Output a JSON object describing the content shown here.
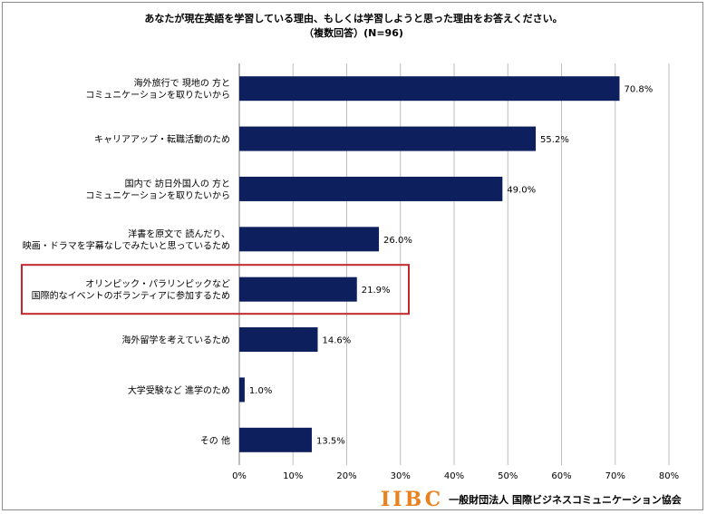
{
  "title_line1": "あなたが現在英語を学習している理由、もしくは学習しようと思った理由をお答えください。",
  "title_line2": "（複数回答）(N=96)",
  "chart_data": {
    "type": "bar",
    "orientation": "horizontal",
    "categories": [
      [
        "海外旅行で 現地の 方と",
        "コミュニケーションを取りたいから"
      ],
      [
        "キャリアアップ・転職活動のため"
      ],
      [
        "国内で 訪日外国人の 方と",
        "コミュニケーションを取りたいから"
      ],
      [
        "洋書を原文で 読んだり、",
        "映画・ドラマを字幕なしでみたいと思っているため"
      ],
      [
        "オリンピック・パラリンピックなど",
        "国際的なイベントのボランティアに参加するため"
      ],
      [
        "海外留学を考えているため"
      ],
      [
        "大学受験など 進学のため"
      ],
      [
        "その 他"
      ]
    ],
    "values": [
      70.8,
      55.2,
      49.0,
      26.0,
      21.9,
      14.6,
      1.0,
      13.5
    ],
    "value_labels": [
      "70.8%",
      "55.2%",
      "49.0%",
      "26.0%",
      "21.9%",
      "14.6%",
      "1.0%",
      "13.5%"
    ],
    "xlim": [
      0,
      80
    ],
    "xticks": [
      0,
      10,
      20,
      30,
      40,
      50,
      60,
      70,
      80
    ],
    "xtick_labels": [
      "0%",
      "10%",
      "20%",
      "30%",
      "40%",
      "50%",
      "60%",
      "70%",
      "80%"
    ],
    "highlighted_category": 4,
    "bar_color": "#0d1f5c",
    "highlight_color": "#c0282d",
    "gridlines": true
  },
  "footer": {
    "logo": "IIBC",
    "org": "一般財団法人 国際ビジネスコミュニケーション協会",
    "logo_color": "#e8821f"
  }
}
